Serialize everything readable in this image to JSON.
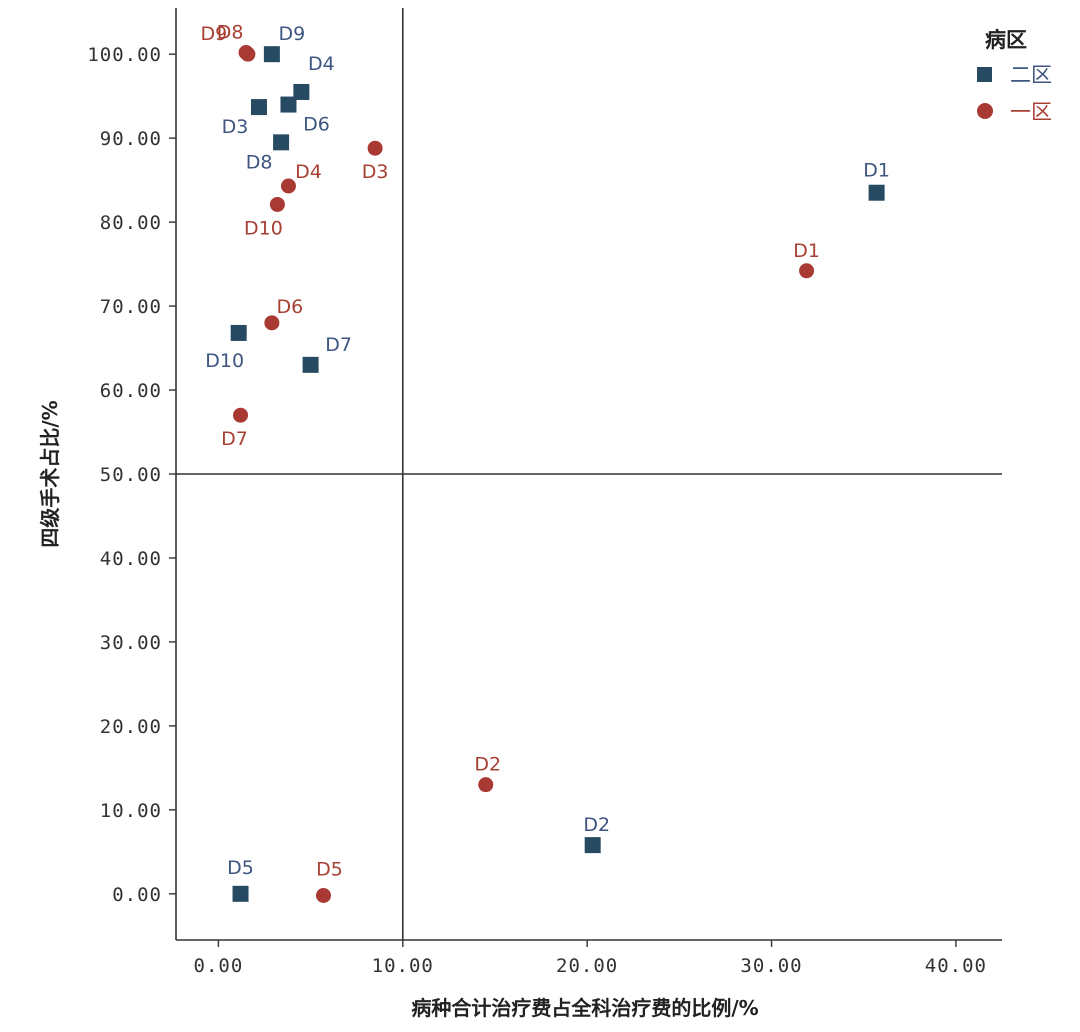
{
  "chart_data": {
    "type": "scatter",
    "xlabel": "病种合计治疗费占全科治疗费的比例/%",
    "ylabel": "四级手术占比/%",
    "xlim": [
      -2.3,
      42.5
    ],
    "ylim": [
      -5.5,
      105.5
    ],
    "x_ticks": [
      "0.00",
      "10.00",
      "20.00",
      "30.00",
      "40.00"
    ],
    "y_ticks": [
      "0.00",
      "10.00",
      "20.00",
      "30.00",
      "40.00",
      "50.00",
      "60.00",
      "70.00",
      "80.00",
      "90.00",
      "100.00"
    ],
    "reference_lines": {
      "x": 10,
      "y": 50
    },
    "legend": {
      "title": "病区",
      "position": "top-right"
    },
    "series": [
      {
        "name": "二区",
        "marker": "square",
        "color": "#274a63",
        "label_color": "#3e5680",
        "points": [
          {
            "label": "D1",
            "x": 35.7,
            "y": 83.5
          },
          {
            "label": "D2",
            "x": 20.3,
            "y": 5.8
          },
          {
            "label": "D3",
            "x": 2.2,
            "y": 93.7
          },
          {
            "label": "D4",
            "x": 4.5,
            "y": 95.5
          },
          {
            "label": "D5",
            "x": 1.2,
            "y": 0.0
          },
          {
            "label": "D6",
            "x": 3.8,
            "y": 94.0
          },
          {
            "label": "D7",
            "x": 5.0,
            "y": 63.0
          },
          {
            "label": "D8",
            "x": 3.4,
            "y": 89.5
          },
          {
            "label": "D9",
            "x": 2.9,
            "y": 100.0
          },
          {
            "label": "D10",
            "x": 1.1,
            "y": 66.8
          }
        ]
      },
      {
        "name": "一区",
        "marker": "circle",
        "color": "#a93a33",
        "label_color": "#a84134",
        "points": [
          {
            "label": "D1",
            "x": 31.9,
            "y": 74.2
          },
          {
            "label": "D2",
            "x": 14.5,
            "y": 13.0
          },
          {
            "label": "D3",
            "x": 8.5,
            "y": 88.8
          },
          {
            "label": "D4",
            "x": 3.8,
            "y": 84.3
          },
          {
            "label": "D5",
            "x": 5.7,
            "y": -0.2
          },
          {
            "label": "D6",
            "x": 2.9,
            "y": 68.0
          },
          {
            "label": "D7",
            "x": 1.2,
            "y": 57.0
          },
          {
            "label": "D8",
            "x": 1.5,
            "y": 100.2
          },
          {
            "label": "D9",
            "x": 1.6,
            "y": 100.0
          },
          {
            "label": "D10",
            "x": 3.2,
            "y": 82.1
          }
        ]
      }
    ]
  }
}
